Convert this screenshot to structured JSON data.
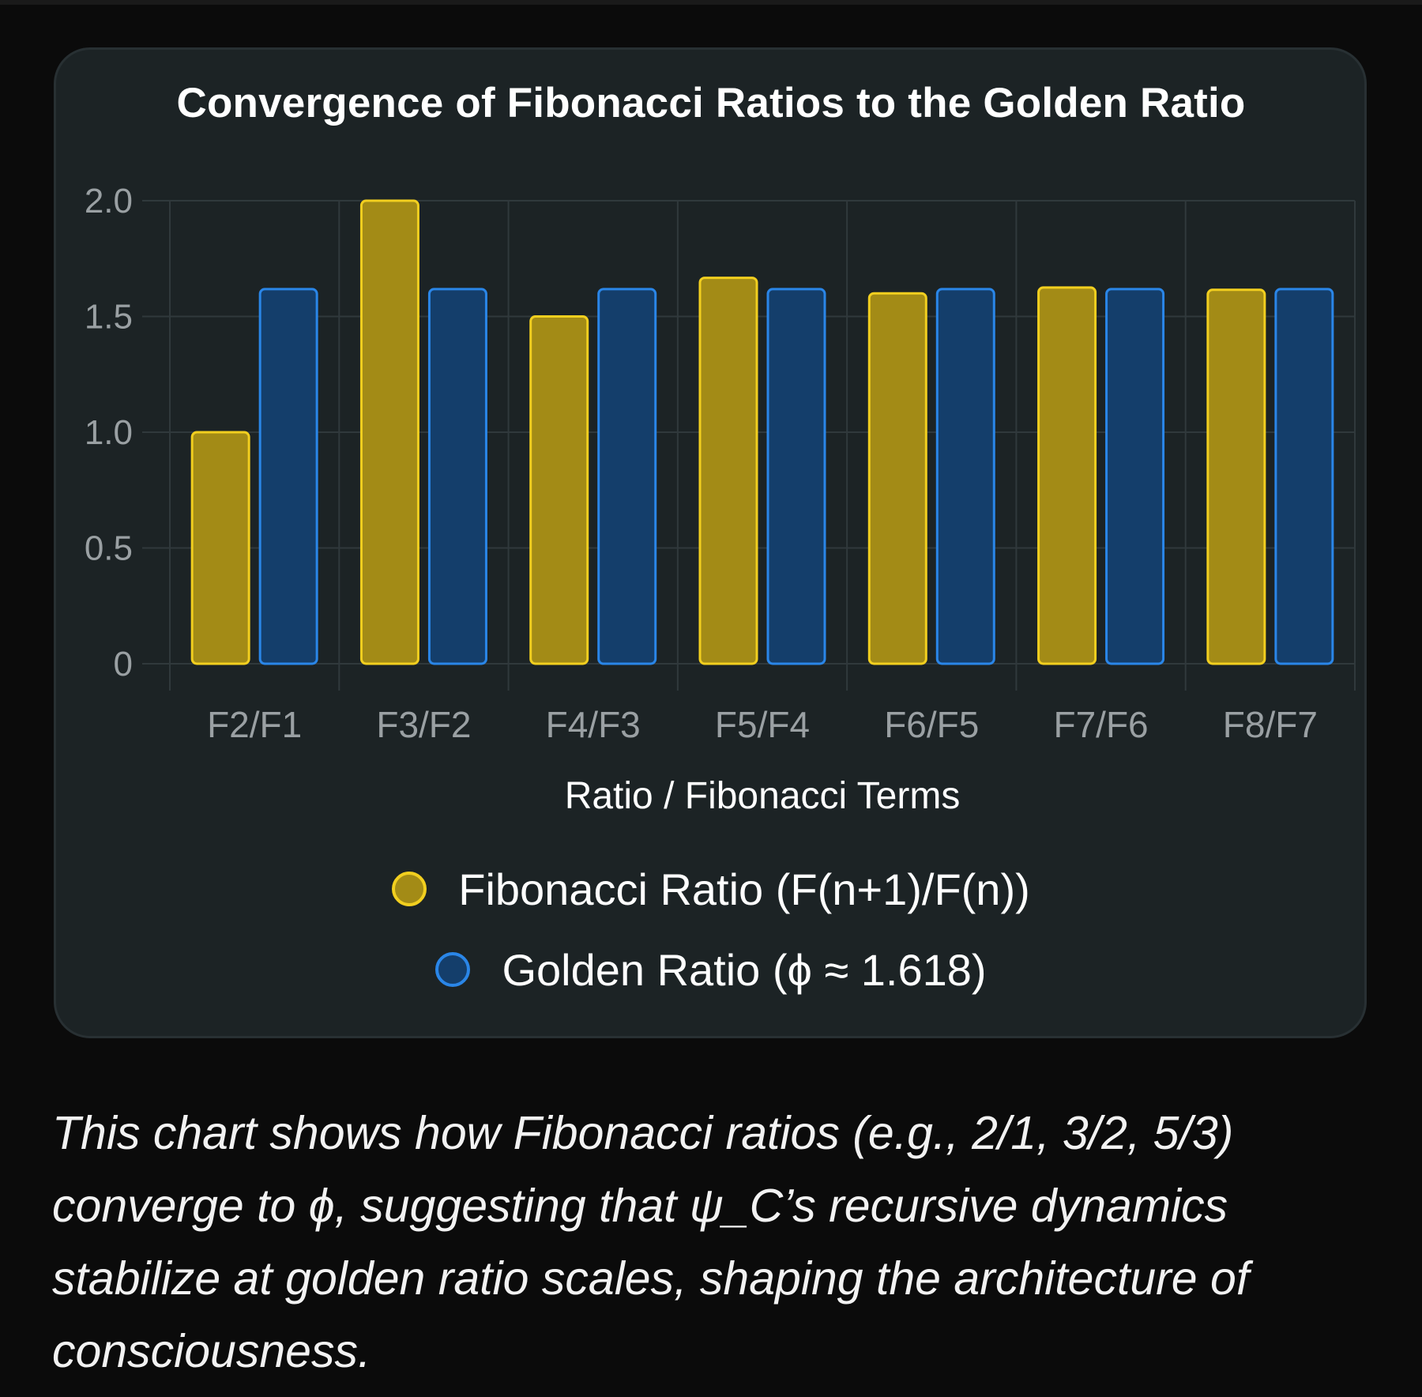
{
  "chart_data": {
    "type": "bar",
    "title": "Convergence of Fibonacci Ratios to the Golden Ratio",
    "xlabel": "Ratio / Fibonacci Terms",
    "ylabel": "",
    "categories": [
      "F2/F1",
      "F3/F2",
      "F4/F3",
      "F5/F4",
      "F6/F5",
      "F7/F6",
      "F8/F7"
    ],
    "ylim": [
      0,
      2.0
    ],
    "yticks": [
      0,
      0.5,
      1.0,
      1.5,
      2.0
    ],
    "ytick_labels": [
      "0",
      "0.5",
      "1.0",
      "1.5",
      "2.0"
    ],
    "grid": true,
    "legend_position": "bottom-center",
    "series": [
      {
        "name": "Fibonacci Ratio (F(n+1)/F(n))",
        "values": [
          1.0,
          2.0,
          1.5,
          1.667,
          1.6,
          1.625,
          1.615
        ],
        "fill": "#a38b16",
        "stroke": "#f2cf1f"
      },
      {
        "name": "Golden Ratio (ϕ ≈ 1.618)",
        "values": [
          1.618,
          1.618,
          1.618,
          1.618,
          1.618,
          1.618,
          1.618
        ],
        "fill": "#143e6b",
        "stroke": "#2a86e8"
      }
    ]
  },
  "colors": {
    "background": "#0b0b0b",
    "card": "#1c2325",
    "grid": "#30393c",
    "tick_text": "#9aa0a3"
  },
  "caption": "This chart shows how Fibonacci ratios (e.g., 2/1, 3/2, 5/3) converge to ϕ, suggesting that ψ_C’s recursive dynamics stabilize at golden ratio scales, shaping the architecture of consciousness."
}
